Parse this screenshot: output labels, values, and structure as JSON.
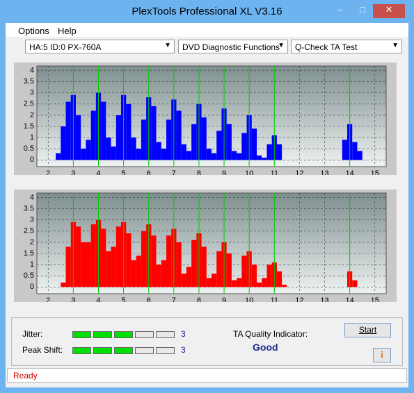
{
  "window": {
    "title": "PlexTools Professional XL V3.16"
  },
  "menu": [
    "Options",
    "Help"
  ],
  "toolbar": [
    "HA:5 ID:0  PX-760A",
    "DVD Diagnostic Functions",
    "Q-Check TA Test"
  ],
  "chart_data": [
    {
      "type": "bar",
      "color": "#0000ff",
      "x": [
        2.4,
        2.6,
        2.8,
        3.0,
        3.2,
        3.4,
        3.6,
        3.8,
        4.0,
        4.2,
        4.4,
        4.6,
        4.8,
        5.0,
        5.2,
        5.4,
        5.6,
        5.8,
        6.0,
        6.2,
        6.4,
        6.6,
        6.8,
        7.0,
        7.2,
        7.4,
        7.6,
        7.8,
        8.0,
        8.2,
        8.4,
        8.6,
        8.8,
        9.0,
        9.2,
        9.4,
        9.6,
        9.8,
        10.0,
        10.2,
        10.4,
        10.6,
        10.8,
        11.0,
        11.2,
        11.4,
        11.6,
        11.8,
        12.0,
        12.2,
        12.4,
        12.6,
        12.8,
        13.0,
        13.2,
        13.4,
        13.6,
        13.8,
        14.0,
        14.2,
        14.4,
        14.6
      ],
      "values": [
        0.3,
        1.5,
        2.6,
        2.9,
        2.0,
        0.5,
        0.9,
        2.2,
        3.0,
        2.6,
        1.0,
        0.6,
        2.0,
        2.9,
        2.5,
        1.0,
        0.5,
        1.8,
        2.8,
        2.4,
        0.8,
        0.5,
        1.8,
        2.7,
        2.2,
        0.7,
        0.4,
        1.6,
        2.5,
        1.9,
        0.5,
        0.3,
        1.3,
        2.3,
        1.6,
        0.4,
        0.3,
        1.2,
        2.0,
        1.4,
        0.2,
        0.1,
        0.7,
        1.1,
        0.7,
        0,
        0,
        0,
        0,
        0,
        0,
        0,
        0,
        0,
        0,
        0,
        0,
        0.9,
        1.6,
        0.8,
        0.4,
        0
      ],
      "xlim": [
        1.55,
        15.45
      ],
      "ylim": [
        -0.3,
        4.2
      ],
      "xticks": [
        2,
        3,
        4,
        5,
        6,
        7,
        8,
        9,
        10,
        11,
        12,
        13,
        14,
        15
      ],
      "yticks": [
        0,
        0.5,
        1,
        1.5,
        2,
        2.5,
        3,
        3.5,
        4
      ],
      "markers": [
        3,
        4,
        5,
        6,
        7,
        8,
        9,
        10,
        11,
        14
      ],
      "marker_color": "#00cc00",
      "grid": true
    },
    {
      "type": "bar",
      "color": "#ff0000",
      "x": [
        2.4,
        2.6,
        2.8,
        3.0,
        3.2,
        3.4,
        3.6,
        3.8,
        4.0,
        4.2,
        4.4,
        4.6,
        4.8,
        5.0,
        5.2,
        5.4,
        5.6,
        5.8,
        6.0,
        6.2,
        6.4,
        6.6,
        6.8,
        7.0,
        7.2,
        7.4,
        7.6,
        7.8,
        8.0,
        8.2,
        8.4,
        8.6,
        8.8,
        9.0,
        9.2,
        9.4,
        9.6,
        9.8,
        10.0,
        10.2,
        10.4,
        10.6,
        10.8,
        11.0,
        11.2,
        11.4,
        11.6,
        11.8,
        12.0,
        12.2,
        12.4,
        12.6,
        12.8,
        13.0,
        13.2,
        13.4,
        13.6,
        13.8,
        14.0,
        14.2,
        14.4,
        14.6
      ],
      "values": [
        0,
        0.2,
        1.8,
        2.9,
        2.7,
        2.0,
        2.0,
        2.8,
        3.0,
        2.6,
        1.6,
        1.8,
        2.7,
        2.9,
        2.4,
        1.2,
        1.4,
        2.5,
        2.8,
        2.3,
        1.0,
        1.2,
        2.3,
        2.6,
        2.0,
        0.6,
        0.9,
        2.1,
        2.4,
        1.8,
        0.4,
        0.6,
        1.6,
        2.0,
        1.5,
        0.3,
        0.4,
        1.4,
        1.6,
        1.0,
        0.2,
        0.4,
        1.0,
        1.1,
        0.7,
        0.1,
        0,
        0,
        0,
        0,
        0,
        0,
        0,
        0,
        0,
        0,
        0,
        0,
        0.7,
        0.3,
        0,
        0
      ],
      "xlim": [
        1.55,
        15.45
      ],
      "ylim": [
        -0.3,
        4.2
      ],
      "xticks": [
        2,
        3,
        4,
        5,
        6,
        7,
        8,
        9,
        10,
        11,
        12,
        13,
        14,
        15
      ],
      "yticks": [
        0,
        0.5,
        1,
        1.5,
        2,
        2.5,
        3,
        3.5,
        4
      ],
      "markers": [
        3,
        4,
        5,
        6,
        7,
        8,
        9,
        10,
        11,
        14
      ],
      "marker_color": "#00cc00",
      "grid": true
    }
  ],
  "meters": [
    {
      "label": "Jitter:",
      "value": 3,
      "segments": 5
    },
    {
      "label": "Peak Shift:",
      "value": 3,
      "segments": 5
    }
  ],
  "quality": {
    "label": "TA Quality Indicator:",
    "result": "Good"
  },
  "buttons": {
    "start": "Start"
  },
  "status": "Ready"
}
